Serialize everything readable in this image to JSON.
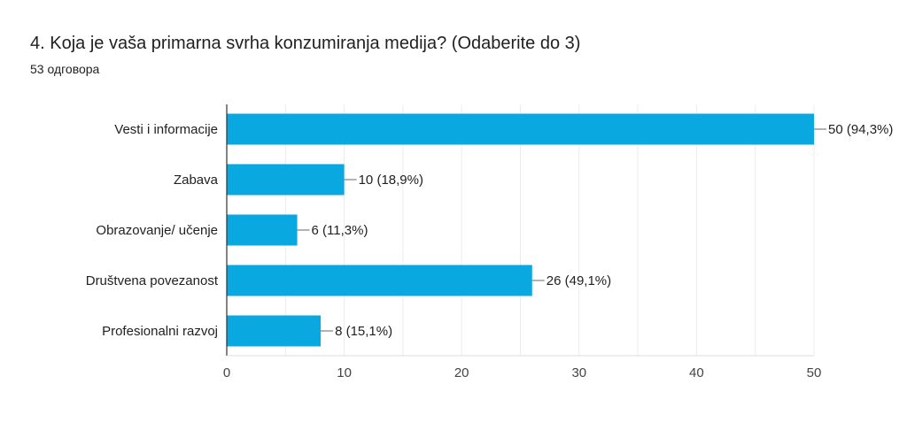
{
  "question": {
    "title": "4. Koja je vaša primarna svrha konzumiranja medija? (Odaberite do 3)",
    "responses": "53 одговора"
  },
  "colors": {
    "bar": "#0aa8e0",
    "grid": "#ececec",
    "axis": "#333333",
    "leader": "#666666"
  },
  "chart_data": {
    "type": "bar",
    "orientation": "horizontal",
    "categories": [
      "Vesti i informacije",
      "Zabava",
      "Obrazovanje/ učenje",
      "Društvena povezanost",
      "Profesionalni razvoj"
    ],
    "values": [
      50,
      10,
      6,
      26,
      8
    ],
    "value_labels": [
      "50 (94,3%)",
      "10 (18,9%)",
      "6 (11,3%)",
      "26 (49,1%)",
      "8 (15,1%)"
    ],
    "xlim": [
      0,
      50
    ],
    "xticks": [
      0,
      10,
      20,
      30,
      40,
      50
    ],
    "grid": true
  }
}
